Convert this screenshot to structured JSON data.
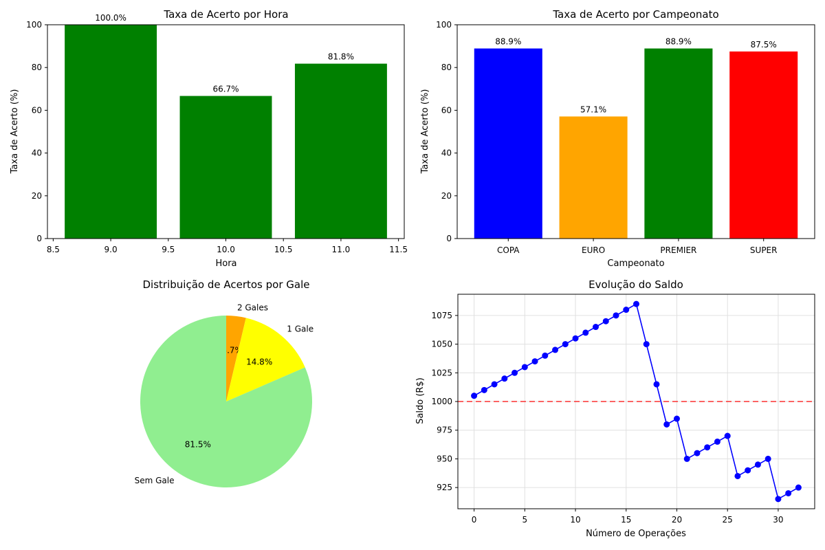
{
  "chart_data": [
    {
      "type": "bar",
      "title": "Taxa de Acerto por Hora",
      "xlabel": "Hora",
      "ylabel": "Taxa de Acerto (%)",
      "x": [
        9,
        10,
        11
      ],
      "values": [
        100.0,
        66.7,
        81.8
      ],
      "value_labels": [
        "100.0%",
        "66.7%",
        "81.8%"
      ],
      "bar_color": "#008000",
      "xlim": [
        8.45,
        11.55
      ],
      "ylim": [
        0,
        100
      ],
      "xticks": [
        "8.5",
        "9.0",
        "9.5",
        "10.0",
        "10.5",
        "11.0",
        "11.5"
      ],
      "yticks": [
        "0",
        "20",
        "40",
        "60",
        "80",
        "100"
      ],
      "grid": false
    },
    {
      "type": "bar",
      "title": "Taxa de Acerto por Campeonato",
      "xlabel": "Campeonato",
      "ylabel": "Taxa de Acerto (%)",
      "categories": [
        "COPA",
        "EURO",
        "PREMIER",
        "SUPER"
      ],
      "values": [
        88.9,
        57.1,
        88.9,
        87.5
      ],
      "value_labels": [
        "88.9%",
        "57.1%",
        "88.9%",
        "87.5%"
      ],
      "colors": [
        "#0000ff",
        "#ffa500",
        "#008000",
        "#ff0000"
      ],
      "ylim": [
        0,
        100
      ],
      "yticks": [
        "0",
        "20",
        "40",
        "60",
        "80",
        "100"
      ],
      "grid": false
    },
    {
      "type": "pie",
      "title": "Distribuição de Acertos por Gale",
      "labels": [
        "2 Gales",
        "1 Gale",
        "Sem Gale"
      ],
      "values": [
        3.7,
        14.8,
        81.5
      ],
      "pct_labels": [
        "3.7%",
        "14.8%",
        "81.5%"
      ],
      "colors": [
        "#ffa500",
        "#ffff00",
        "#90ee90"
      ]
    },
    {
      "type": "line",
      "title": "Evolução do Saldo",
      "xlabel": "Número de Operações",
      "ylabel": "Saldo (R$)",
      "x": [
        0,
        1,
        2,
        3,
        4,
        5,
        6,
        7,
        8,
        9,
        10,
        11,
        12,
        13,
        14,
        15,
        16,
        17,
        18,
        19,
        20,
        21,
        22,
        23,
        24,
        25,
        26,
        27,
        28,
        29,
        30,
        31,
        32
      ],
      "y": [
        1005,
        1010,
        1015,
        1020,
        1025,
        1030,
        1035,
        1040,
        1045,
        1050,
        1055,
        1060,
        1065,
        1070,
        1075,
        1080,
        1085,
        1050,
        1015,
        980,
        985,
        950,
        955,
        960,
        965,
        970,
        935,
        940,
        945,
        950,
        915,
        920,
        925
      ],
      "line_color": "#0000ff",
      "reference_line": {
        "y": 1000,
        "color": "#ff0000",
        "style": "dashed"
      },
      "xlim": [
        -1.6,
        33.6
      ],
      "ylim": [
        906.5,
        1093.5
      ],
      "xticks": [
        "0",
        "5",
        "10",
        "15",
        "20",
        "25",
        "30"
      ],
      "yticks": [
        "925",
        "950",
        "975",
        "1000",
        "1025",
        "1050",
        "1075"
      ],
      "grid": true
    }
  ]
}
